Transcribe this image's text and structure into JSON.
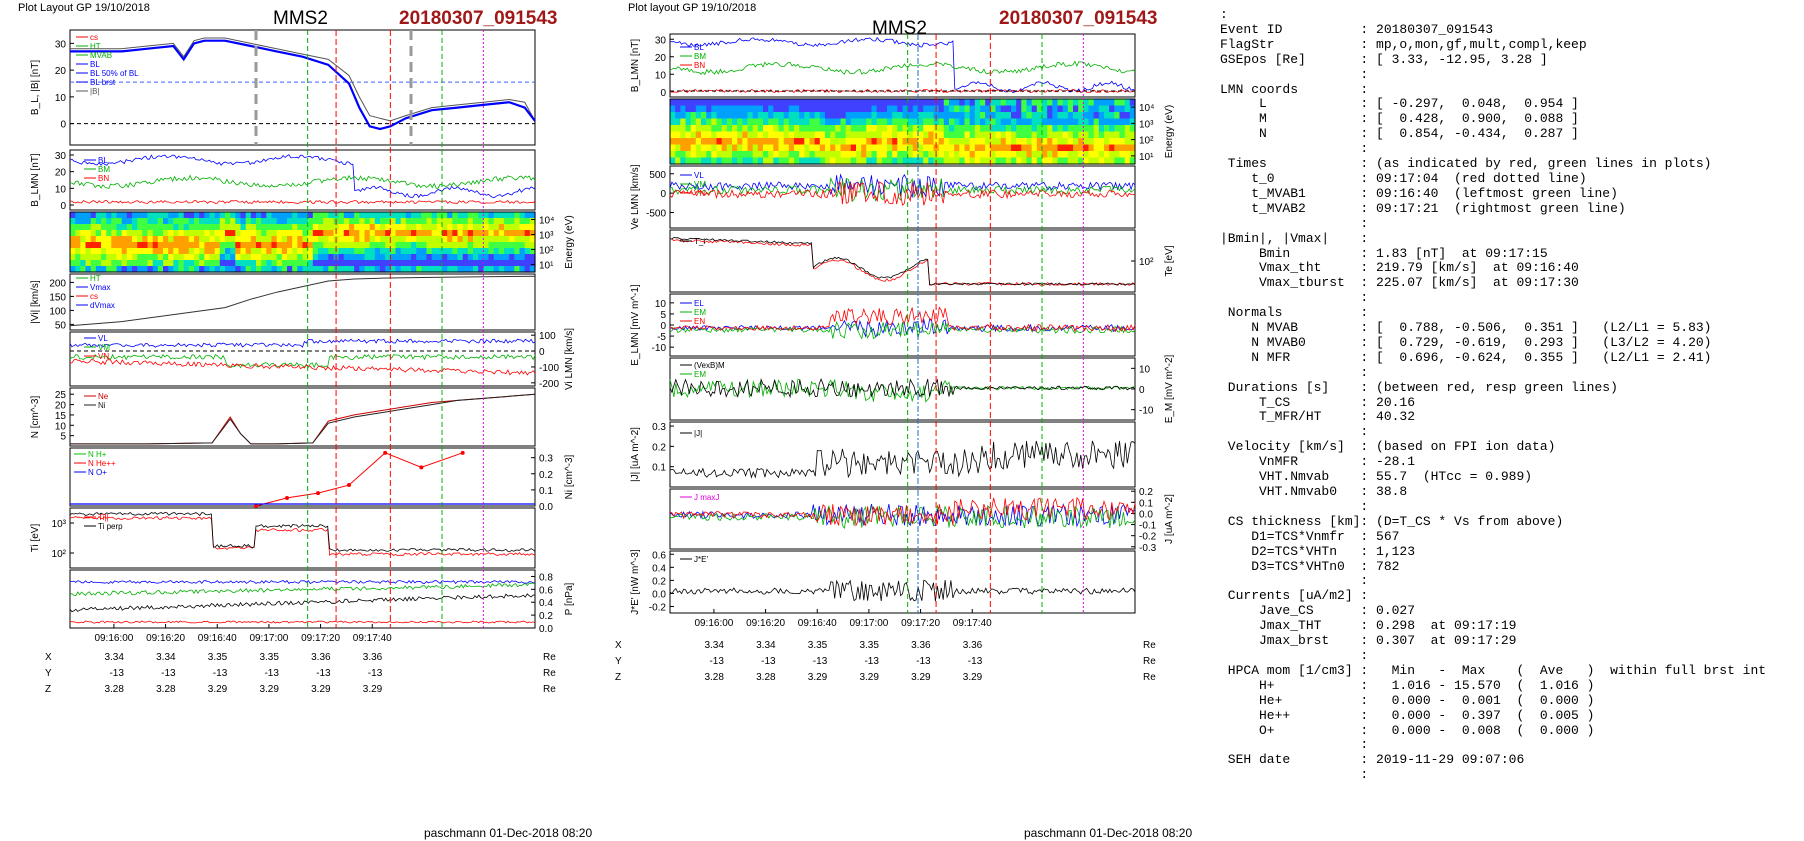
{
  "left_plot": {
    "header": "Plot Layout GP 19/10/2018",
    "spacecraft": "MMS2",
    "event": "20180307_091543",
    "footer": "paschmann 01-Dec-2018 08:20",
    "time_ticks": [
      "09:16:00",
      "09:16:20",
      "09:16:40",
      "09:17:00",
      "09:17:20",
      "09:17:40"
    ],
    "position_rows": [
      {
        "label": "X",
        "values": [
          "3.34",
          "3.34",
          "3.35",
          "3.35",
          "3.36",
          "3.36"
        ],
        "unit": "Re"
      },
      {
        "label": "Y",
        "values": [
          "-13",
          "-13",
          "-13",
          "-13",
          "-13",
          "-13"
        ],
        "unit": "Re"
      },
      {
        "label": "Z",
        "values": [
          "3.28",
          "3.28",
          "3.29",
          "3.29",
          "3.29",
          "3.29"
        ],
        "unit": "Re"
      }
    ]
  },
  "right_plot": {
    "header": "Plot layout GP 19/10/2018",
    "spacecraft": "MMS2",
    "event": "20180307_091543",
    "footer": "paschmann 01-Dec-2018 08:20",
    "time_ticks": [
      "09:16:00",
      "09:16:20",
      "09:16:40",
      "09:17:00",
      "09:17:20",
      "09:17:40"
    ],
    "position_rows": [
      {
        "label": "X",
        "values": [
          "3.34",
          "3.34",
          "3.35",
          "3.35",
          "3.36",
          "3.36"
        ],
        "unit": "Re"
      },
      {
        "label": "Y",
        "values": [
          "-13",
          "-13",
          "-13",
          "-13",
          "-13",
          "-13"
        ],
        "unit": "Re"
      },
      {
        "label": "Z",
        "values": [
          "3.28",
          "3.28",
          "3.29",
          "3.29",
          "3.29",
          "3.29"
        ],
        "unit": "Re"
      }
    ]
  },
  "info_panel": {
    "lines": [
      ":",
      "Event ID          : 20180307_091543",
      "FlagStr           : mp,o,mon,gf,mult,compl,keep",
      "GSEpos [Re]       : [ 3.33, -12.95, 3.28 ]",
      "                  :",
      "LMN coords        :",
      "     L            : [ -0.297,  0.048,  0.954 ]",
      "     M            : [  0.428,  0.900,  0.088 ]",
      "     N            : [  0.854, -0.434,  0.287 ]",
      "                  :",
      " Times            : (as indicated by red, green lines in plots)",
      "    t_0           : 09:17:04  (red dotted line)",
      "    t_MVAB1       : 09:16:40  (leftmost green line)",
      "    t_MVAB2       : 09:17:21  (rightmost green line)",
      "                  :",
      "|Bmin|, |Vmax|    :",
      "     Bmin         : 1.83 [nT]  at 09:17:15",
      "     Vmax_tht     : 219.79 [km/s]  at 09:16:40",
      "     Vmax_tburst  : 225.07 [km/s]  at 09:17:30",
      "                  :",
      " Normals          :",
      "    N MVAB        : [  0.788, -0.506,  0.351 ]   (L2/L1 = 5.83)",
      "    N MVAB0       : [  0.729, -0.619,  0.293 ]   (L3/L2 = 4.20)",
      "    N MFR         : [  0.696, -0.624,  0.355 ]   (L2/L1 = 2.41)",
      "                  :",
      " Durations [s]    : (between red, resp green lines)",
      "     T_CS         : 20.16",
      "     T_MFR/HT     : 40.32",
      "                  :",
      " Velocity [km/s]  : (based on FPI ion data)",
      "     VnMFR        : -28.1",
      "     VHT.Nmvab    : 55.7  (HTcc = 0.989)",
      "     VHT.Nmvab0   : 38.8",
      "                  :",
      " CS thickness [km]: (D=T_CS * Vs from above)",
      "    D1=TCS*Vnmfr  : 567",
      "    D2=TCS*VHTn   : 1,123",
      "    D3=TCS*VHTn0  : 782",
      "                  :",
      " Currents [uA/m2] :",
      "     Jave_CS      : 0.027",
      "     Jmax_THT     : 0.298  at 09:17:19",
      "     Jmax_brst    : 0.307  at 09:17:29",
      "                  :",
      " HPCA mom [1/cm3] :   Min   -  Max    (  Ave   )  within full brst int",
      "     H+           :   1.016 - 15.570  (  1.016 )",
      "     He+          :   0.000 -  0.001  (  0.000 )",
      "     He++         :   0.000 -  0.397  (  0.005 )",
      "     O+           :   0.000 -  0.008  (  0.000 )",
      "                  :",
      " SEH date         : 2019-11-29 09:07:06",
      "                  :"
    ]
  },
  "colors": {
    "event_red": "#a01818",
    "red": "#ff0000",
    "green": "#00b000",
    "blue": "#0000ff",
    "magenta": "#e000e0",
    "grey": "#999999",
    "black": "#000000"
  },
  "chart_data": [
    {
      "type": "line",
      "title": "MMS2  20180307_091543",
      "x_range": [
        "09:15:43",
        "09:17:43"
      ],
      "x_ticks": [
        "09:16:00",
        "09:16:20",
        "09:16:40",
        "09:17:00",
        "09:17:20",
        "09:17:40"
      ],
      "panels": [
        {
          "id": "B",
          "ylabel": "B_L, |B| [nT]",
          "yticks": [
            "0",
            "10",
            "20",
            "30"
          ],
          "ylim": [
            -8,
            35
          ],
          "legend": [
            "cs",
            "HT",
            "MVAB",
            "BL",
            "BL 50% of BL",
            "BL brst",
            "|B|"
          ],
          "series": [
            {
              "name": "|B|",
              "color": "#555555",
              "x": [
                0,
                10,
                20,
                30,
                40,
                44,
                48,
                52,
                60,
                70,
                80,
                90,
                100,
                108,
                112,
                116,
                120,
                124,
                130,
                140,
                150,
                160,
                170,
                176,
                180
              ],
              "y": [
                28,
                28,
                28,
                29,
                30,
                25,
                31,
                32,
                32,
                30,
                28,
                26,
                24,
                18,
                10,
                3,
                2,
                1,
                3,
                6,
                7,
                8,
                9,
                8,
                1
              ]
            },
            {
              "name": "BL",
              "color": "#0000ff",
              "x": [
                0,
                10,
                20,
                30,
                40,
                44,
                48,
                52,
                60,
                70,
                80,
                90,
                100,
                108,
                112,
                116,
                120,
                124,
                130,
                140,
                150,
                160,
                170,
                176,
                180
              ],
              "y": [
                27,
                27,
                27,
                28,
                29,
                24,
                30,
                31,
                31,
                29,
                27,
                25,
                22,
                15,
                6,
                -1,
                -2,
                -1,
                2,
                5,
                6,
                7,
                8,
                6,
                1
              ]
            }
          ]
        },
        {
          "id": "BLMN",
          "ylabel": "B_LMN [nT]",
          "yticks": [
            "0",
            "10",
            "20",
            "30"
          ],
          "ylim": [
            -3,
            33
          ],
          "legend": [
            "BL",
            "BM",
            "BN"
          ]
        },
        {
          "id": "ion_spec",
          "ylabel": "Energy (eV)",
          "yticks": [
            "10^1",
            "10^2",
            "10^3",
            "10^4"
          ]
        },
        {
          "id": "Vi",
          "ylabel": "|Vi| [km/s]",
          "yticks": [
            "50",
            "100",
            "150",
            "200"
          ],
          "ylim": [
            30,
            230
          ],
          "legend": [
            "HT",
            "Vmax",
            "cs",
            "dVmax"
          ],
          "series": [
            {
              "name": "|Vi|",
              "color": "#333333",
              "x": [
                0,
                20,
                40,
                60,
                70,
                80,
                90,
                100,
                110,
                120,
                140,
                160,
                180
              ],
              "y": [
                45,
                60,
                85,
                110,
                140,
                165,
                185,
                205,
                212,
                215,
                218,
                220,
                222
              ]
            }
          ]
        },
        {
          "id": "ViLMN",
          "ylabel": "Vi LMN [km/s]",
          "yticks": [
            "100",
            "0",
            "-100",
            "-200"
          ],
          "ylim": [
            -220,
            120
          ],
          "legend": [
            "VL",
            "VM",
            "VN"
          ]
        },
        {
          "id": "N",
          "ylabel": "N [cm^-3]",
          "yticks": [
            "5",
            "10",
            "15",
            "20",
            "25"
          ],
          "ylim": [
            0,
            28
          ],
          "legend": [
            "Ne",
            "Ni"
          ],
          "series": [
            {
              "name": "Ne",
              "color": "#cc0000",
              "x": [
                0,
                30,
                55,
                62,
                66,
                70,
                80,
                94,
                100,
                110,
                120,
                130,
                140,
                150,
                160,
                170,
                180
              ],
              "y": [
                1,
                1,
                1.5,
                14,
                6,
                1,
                1,
                1.5,
                12,
                15,
                17,
                19,
                21,
                22,
                23,
                24,
                25
              ]
            },
            {
              "name": "Ni",
              "color": "#222222",
              "x": [
                0,
                30,
                55,
                62,
                66,
                70,
                80,
                94,
                100,
                110,
                120,
                130,
                140,
                150,
                160,
                170,
                180
              ],
              "y": [
                1,
                1,
                1.5,
                13,
                6,
                1,
                1,
                1.5,
                11,
                14,
                16,
                18,
                20,
                22,
                23,
                24,
                25
              ]
            }
          ]
        },
        {
          "id": "Ni_minor",
          "ylabel": "Ni [cm^-3]",
          "yticks": [
            "0.0",
            "0.1",
            "0.2",
            "0.3"
          ],
          "ylim": [
            0,
            0.36
          ],
          "legend": [
            "N H+",
            "N He++",
            "N O+"
          ],
          "series": [
            {
              "name": "N He++",
              "color": "#ff0000",
              "x": [
                72,
                84,
                96,
                108,
                122,
                136,
                152
              ],
              "y": [
                0.0,
                0.05,
                0.08,
                0.13,
                0.33,
                0.24,
                0.33
              ]
            }
          ]
        },
        {
          "id": "Ti",
          "ylabel": "Ti [eV]",
          "yticks": [
            "10^2",
            "10^3"
          ],
          "legend": [
            "Ti||",
            "Ti perp"
          ]
        },
        {
          "id": "P",
          "ylabel": "P [nPa]",
          "yticks": [
            "0.0",
            "0.2",
            "0.4",
            "0.6",
            "0.8"
          ],
          "ylim": [
            0,
            0.9
          ]
        }
      ]
    },
    {
      "type": "line",
      "title": "MMS2  20180307_091543",
      "x_range": [
        "09:15:43",
        "09:17:43"
      ],
      "x_ticks": [
        "09:16:00",
        "09:16:20",
        "09:16:40",
        "09:17:00",
        "09:17:20",
        "09:17:40"
      ],
      "panels": [
        {
          "id": "BLMN",
          "ylabel": "B_LMN [nT]",
          "yticks": [
            "0",
            "10",
            "20",
            "30"
          ],
          "ylim": [
            -3,
            33
          ],
          "legend": [
            "BL",
            "BM",
            "BN"
          ]
        },
        {
          "id": "e_spec",
          "ylabel": "Energy (eV)",
          "yticks": [
            "10^1",
            "10^2",
            "10^3",
            "10^4"
          ]
        },
        {
          "id": "Ve",
          "ylabel": "Ve LMN [km/s]",
          "yticks": [
            "500",
            "0",
            "-500"
          ],
          "ylim": [
            -900,
            700
          ],
          "legend": [
            "VL",
            "VM",
            "VN"
          ]
        },
        {
          "id": "Te",
          "ylabel": "Te [eV]",
          "yticks": [
            "10^2"
          ],
          "legend": [
            "T_i"
          ]
        },
        {
          "id": "E",
          "ylabel": "E_LMN [mV m^-1]",
          "yticks": [
            "10",
            "5",
            "0",
            "-5",
            "-10"
          ],
          "ylim": [
            -14,
            14
          ],
          "legend": [
            "EL",
            "EM",
            "EN"
          ]
        },
        {
          "id": "VexB",
          "ylabel": "E_M [mV m^-2]",
          "yticks": [
            "10",
            "0",
            "-10"
          ],
          "ylim": [
            -15,
            15
          ],
          "legend": [
            "(VexB)M",
            "EM"
          ]
        },
        {
          "id": "J",
          "ylabel": "|J| [uA m^-2]",
          "yticks": [
            "0.1",
            "0.2",
            "0.3"
          ],
          "ylim": [
            0,
            0.32
          ],
          "legend": [
            "|J|"
          ]
        },
        {
          "id": "JLMN",
          "ylabel": "J [uA m^-2]",
          "yticks": [
            "0.2",
            "0.1",
            "0.0",
            "-0.1",
            "-0.2",
            "-0.3"
          ],
          "ylim": [
            -0.32,
            0.22
          ],
          "legend": [
            "J maxJ"
          ]
        },
        {
          "id": "JE",
          "ylabel": "J*E' [nW m^-3]",
          "yticks": [
            "0.6",
            "0.4",
            "0.2",
            "0.0",
            "-0.2"
          ],
          "ylim": [
            -0.3,
            0.65
          ],
          "legend": [
            "J*E'"
          ]
        }
      ]
    }
  ]
}
